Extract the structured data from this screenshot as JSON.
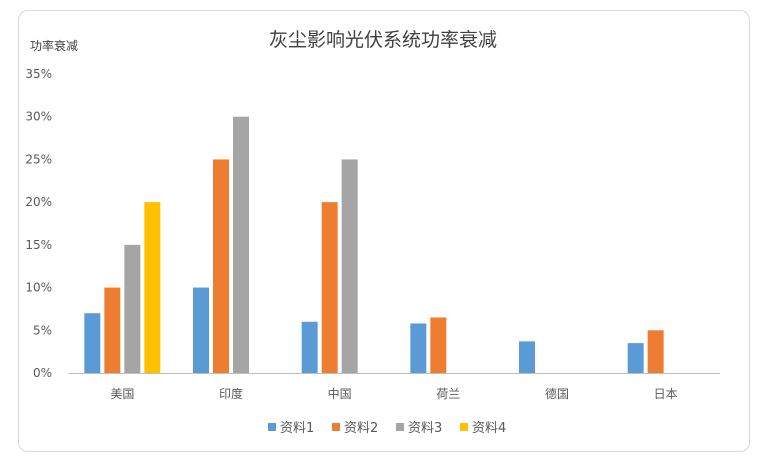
{
  "chart_data": {
    "type": "bar",
    "title": "灰尘影响光伏系统功率衰减",
    "ylabel": "功率衰减",
    "xlabel": "",
    "categories": [
      "美国",
      "印度",
      "中国",
      "荷兰",
      "德国",
      "日本"
    ],
    "series": [
      {
        "name": "资料1",
        "color": "#5B9BD5",
        "values": [
          0.07,
          0.1,
          0.06,
          0.058,
          0.037,
          0.035
        ]
      },
      {
        "name": "资料2",
        "color": "#ED7D31",
        "values": [
          0.1,
          0.25,
          0.2,
          0.065,
          null,
          0.05
        ]
      },
      {
        "name": "资料3",
        "color": "#A5A5A5",
        "values": [
          0.15,
          0.3,
          0.25,
          null,
          null,
          null
        ]
      },
      {
        "name": "资料4",
        "color": "#FFC000",
        "values": [
          0.2,
          null,
          null,
          null,
          null,
          null
        ]
      }
    ],
    "yticks": [
      "0%",
      "5%",
      "10%",
      "15%",
      "20%",
      "25%",
      "30%",
      "35%"
    ],
    "ylim": [
      0,
      0.35
    ],
    "grid": false,
    "legend": "bottom"
  }
}
